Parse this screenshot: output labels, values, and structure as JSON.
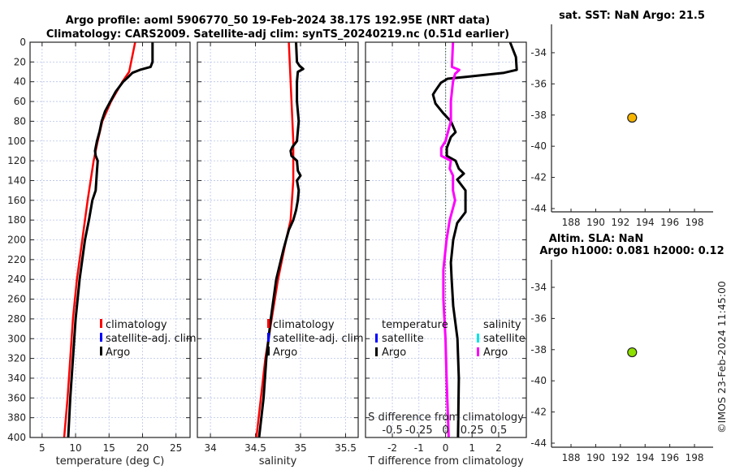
{
  "figure": {
    "title_line1": "Argo profile: aoml 5906770_50 19-Feb-2024 38.17S 192.95E (NRT data)",
    "title_line2": "Climatology: CARS2009. Satellite-adj clim: synTS_20240219.nc (0.51d earlier)",
    "credit": "©IMOS 23-Feb-2024 11:45:00"
  },
  "colors": {
    "climatology": "#ff0000",
    "satellite_adj": "#0000ff",
    "argo": "#000000",
    "sal_satellite": "#00e5e5",
    "sal_argo": "#ff00ff",
    "sst_marker": "#f7b500",
    "sla_marker": "#8ee000",
    "grid": "#b8c4e8"
  },
  "chart_data": [
    {
      "type": "line",
      "panel": "temperature",
      "xlabel": "temperature (deg C)",
      "ylabel": "",
      "xlim": [
        3.2,
        27.1
      ],
      "ylim": [
        400,
        0
      ],
      "xticks": [
        5,
        10,
        15,
        20,
        25
      ],
      "yticks": [
        0,
        20,
        40,
        60,
        80,
        100,
        120,
        140,
        160,
        180,
        200,
        220,
        240,
        260,
        280,
        300,
        320,
        340,
        360,
        380,
        400
      ],
      "grid": true,
      "legend": {
        "placement": "center-right",
        "entries": [
          "climatology",
          "satellite-adj. clim",
          "Argo"
        ]
      },
      "series": [
        {
          "name": "climatology",
          "color_key": "climatology",
          "depth": [
            0,
            30,
            40,
            60,
            80,
            100,
            120,
            160,
            200,
            240,
            280,
            320,
            360,
            400
          ],
          "values": [
            18.9,
            18.0,
            17.0,
            15.3,
            14.0,
            13.3,
            12.7,
            11.8,
            11.0,
            10.2,
            9.6,
            9.2,
            8.8,
            8.3
          ]
        },
        {
          "name": "Argo",
          "color_key": "argo",
          "depth": [
            0,
            20,
            25,
            28,
            31,
            35,
            40,
            50,
            60,
            70,
            80,
            90,
            100,
            110,
            115,
            120,
            130,
            140,
            150,
            160,
            180,
            200,
            240,
            280,
            320,
            360,
            400
          ],
          "values": [
            21.5,
            21.5,
            21.2,
            19.6,
            18.5,
            17.9,
            17.1,
            16.0,
            15.2,
            14.4,
            13.9,
            13.6,
            13.2,
            12.9,
            13.0,
            13.3,
            13.2,
            13.1,
            13.0,
            12.5,
            12.0,
            11.4,
            10.6,
            10.0,
            9.6,
            9.2,
            8.9
          ]
        }
      ]
    },
    {
      "type": "line",
      "panel": "salinity",
      "xlabel": "salinity",
      "xlim": [
        33.855,
        35.64
      ],
      "ylim": [
        400,
        0
      ],
      "xticks": [
        34,
        34.5,
        35,
        35.5
      ],
      "xticklabels": [
        "34",
        "34.5",
        "35",
        "35.5"
      ],
      "grid": true,
      "legend": {
        "placement": "center-right",
        "entries": [
          "climatology",
          "satellite-adj. clim",
          "Argo"
        ]
      },
      "series": [
        {
          "name": "climatology",
          "color_key": "climatology",
          "depth": [
            0,
            60,
            100,
            140,
            180,
            200,
            240,
            280,
            320,
            360,
            400
          ],
          "values": [
            34.87,
            34.9,
            34.92,
            34.92,
            34.89,
            34.84,
            34.75,
            34.68,
            34.61,
            34.56,
            34.51
          ]
        },
        {
          "name": "Argo",
          "color_key": "argo",
          "depth": [
            0,
            20,
            24,
            27,
            30,
            40,
            60,
            80,
            100,
            106,
            110,
            115,
            120,
            130,
            135,
            140,
            150,
            160,
            170,
            180,
            190,
            210,
            240,
            280,
            320,
            360,
            400
          ],
          "values": [
            34.95,
            34.96,
            34.99,
            35.03,
            34.97,
            34.96,
            34.96,
            34.98,
            34.96,
            34.91,
            34.89,
            34.9,
            34.96,
            34.97,
            35.0,
            34.96,
            34.98,
            34.97,
            34.95,
            34.92,
            34.87,
            34.81,
            34.73,
            34.67,
            34.62,
            34.59,
            34.54
          ]
        }
      ]
    },
    {
      "type": "line",
      "panel": "difference",
      "xlabel": "T difference from climatology",
      "xlim": [
        -3.01,
        3.04
      ],
      "ylim": [
        400,
        0
      ],
      "xticks": [
        -2,
        -1,
        0,
        1,
        2
      ],
      "secondary_axis": {
        "label": "S difference from climatology",
        "xticks": [
          -0.5,
          -0.25,
          0,
          0.25,
          0.5
        ],
        "xticklabels": [
          "-0.5",
          "-0.25",
          "0",
          "0.25",
          "0.5"
        ],
        "scale_factor": 4
      },
      "grid": true,
      "legend": {
        "placement": "center",
        "temperature_title": "temperature",
        "salinity_title": "salinity",
        "entries": [
          "satellite",
          "Argo",
          "satellite",
          "Argo"
        ]
      },
      "series": [
        {
          "name": "T Argo",
          "color_key": "argo",
          "axis": "T",
          "depth": [
            0,
            15,
            28,
            31,
            35,
            37,
            41,
            49,
            53,
            62,
            72,
            80,
            91,
            96,
            107,
            115,
            120,
            128,
            133,
            139,
            150,
            161,
            172,
            183,
            200,
            223,
            239,
            267,
            300,
            340,
            400
          ],
          "values": [
            2.43,
            2.65,
            2.68,
            2.2,
            0.8,
            0.08,
            -0.17,
            -0.38,
            -0.47,
            -0.38,
            -0.08,
            0.2,
            0.38,
            0.2,
            0.05,
            0.05,
            0.38,
            0.5,
            0.69,
            0.44,
            0.75,
            0.75,
            0.75,
            0.44,
            0.29,
            0.2,
            0.23,
            0.29,
            0.45,
            0.5,
            0.47
          ]
        },
        {
          "name": "S Argo",
          "color_key": "sal_argo",
          "axis": "S",
          "depth": [
            0,
            25,
            28,
            32,
            40,
            60,
            80,
            100,
            107,
            115,
            120,
            128,
            135,
            150,
            160,
            180,
            200,
            230,
            260,
            300,
            340,
            400
          ],
          "values": [
            0.07,
            0.06,
            0.13,
            0.09,
            0.07,
            0.05,
            0.05,
            0.0,
            -0.04,
            -0.04,
            0.05,
            0.04,
            0.07,
            0.07,
            0.09,
            0.04,
            0.01,
            -0.02,
            -0.02,
            0.0,
            0.01,
            0.03
          ]
        }
      ]
    },
    {
      "type": "scatter",
      "panel": "sst_map",
      "title": "sat. SST: NaN Argo: 21.5",
      "xlim": [
        186.42,
        199.51
      ],
      "ylim": [
        -44.21,
        -32.18
      ],
      "xticks": [
        188,
        190,
        192,
        194,
        196,
        198
      ],
      "yticks": [
        -34,
        -36,
        -38,
        -40,
        -42,
        -44
      ],
      "points": [
        {
          "x": 192.95,
          "y": -38.17,
          "color_key": "sst_marker"
        }
      ]
    },
    {
      "type": "scatter",
      "panel": "sla_map",
      "title_line1": "Altim. SLA: NaN",
      "title_line2": "Argo h1000: 0.081 h2000: 0.12",
      "xlim": [
        186.42,
        199.51
      ],
      "ylim": [
        -44.26,
        -32.23
      ],
      "xticks": [
        188,
        190,
        192,
        194,
        196,
        198
      ],
      "yticks": [
        -34,
        -36,
        -38,
        -40,
        -42,
        -44
      ],
      "points": [
        {
          "x": 192.95,
          "y": -38.17,
          "color_key": "sla_marker"
        }
      ]
    }
  ]
}
